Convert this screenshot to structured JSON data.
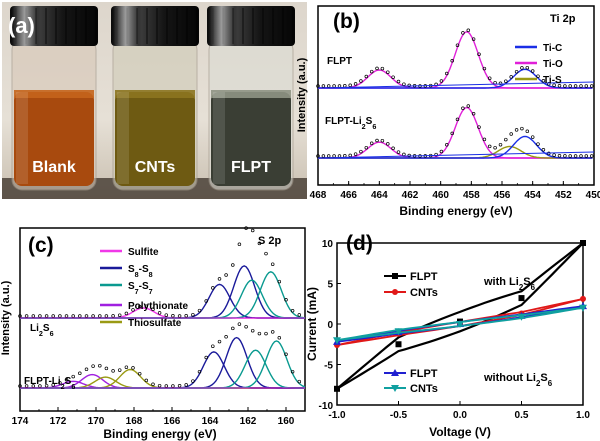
{
  "panel_a": {
    "label": "(a)",
    "vials": [
      {
        "label": "Blank",
        "liquid": "#a84a0e",
        "liquid_top": "#c4641c",
        "glass": "#d8c8b8"
      },
      {
        "label": "CNTs",
        "liquid": "#6e5a12",
        "liquid_top": "#8c7420",
        "glass": "#d0ccb8"
      },
      {
        "label": "FLPT",
        "liquid": "#3a3e34",
        "liquid_top": "#8f9484",
        "glass": "#dcdcd4"
      }
    ]
  },
  "chart_data": [
    {
      "panel": "(b)",
      "type": "line",
      "title": "Ti 2p",
      "xlabel": "Binding energy (eV)",
      "ylabel": "Intensity (a.u.)",
      "xlim": [
        468,
        450
      ],
      "x_ticks": [
        468,
        466,
        464,
        462,
        460,
        458,
        456,
        454,
        452,
        450
      ],
      "legend": [
        "Ti-C",
        "Ti-O",
        "Ti-S"
      ],
      "legend_colors": [
        "#1a2ee6",
        "#e020d8",
        "#9a9a14"
      ],
      "traces": [
        "FLPT",
        "FLPT-Li2S6"
      ],
      "series": [
        {
          "name": "FLPT",
          "peaks": [
            {
              "center": 464.0,
              "height": 0.25
            },
            {
              "center": 458.3,
              "height": 0.78
            },
            {
              "center": 454.5,
              "height": 0.26
            }
          ]
        },
        {
          "name": "FLPT-Li2S6",
          "peaks": [
            {
              "center": 464.0,
              "height": 0.22
            },
            {
              "center": 458.3,
              "height": 0.7
            },
            {
              "center": 455.5,
              "height": 0.16
            },
            {
              "center": 454.5,
              "height": 0.3
            }
          ]
        }
      ]
    },
    {
      "panel": "(c)",
      "type": "line",
      "title": "S 2p",
      "xlabel": "Binding energy (eV)",
      "ylabel": "Intensity (a.u.)",
      "xlim": [
        174,
        159
      ],
      "x_ticks": [
        174,
        172,
        170,
        168,
        166,
        164,
        162,
        160
      ],
      "legend": [
        "Sulfite",
        "S8-S8",
        "S7-S7",
        "Polythionate",
        "Thiosulfate"
      ],
      "legend_colors": [
        "#f038e8",
        "#1a1a9a",
        "#0a9a90",
        "#a020e0",
        "#9a9a14"
      ],
      "traces": [
        "Li2S6",
        "FLPT-Li2S6"
      ],
      "series": [
        {
          "name": "Li2S6",
          "peaks": [
            {
              "center": 167.5,
              "height": 0.12
            },
            {
              "center": 163.5,
              "height": 0.4
            },
            {
              "center": 162.2,
              "height": 0.62
            },
            {
              "center": 161.8,
              "height": 0.45
            },
            {
              "center": 160.8,
              "height": 0.55
            }
          ]
        },
        {
          "name": "FLPT-Li2S6",
          "peaks": [
            {
              "center": 171.2,
              "height": 0.08
            },
            {
              "center": 170.2,
              "height": 0.16
            },
            {
              "center": 169.5,
              "height": 0.13
            },
            {
              "center": 168.2,
              "height": 0.22
            },
            {
              "center": 163.8,
              "height": 0.43
            },
            {
              "center": 162.6,
              "height": 0.6
            },
            {
              "center": 161.6,
              "height": 0.45
            },
            {
              "center": 160.5,
              "height": 0.56
            }
          ]
        }
      ]
    },
    {
      "panel": "(d)",
      "type": "line",
      "xlabel": "Voltage (V)",
      "ylabel": "Current (mA)",
      "xlim": [
        -1.0,
        1.0
      ],
      "ylim": [
        -10,
        10
      ],
      "x_ticks": [
        -1.0,
        -0.5,
        0.0,
        0.5,
        1.0
      ],
      "y_ticks": [
        -10,
        -5,
        0,
        5,
        10
      ],
      "annotations": [
        "with Li2S6",
        "without Li2S6"
      ],
      "series": [
        {
          "name": "FLPT",
          "group": "with Li2S6",
          "color": "#000000",
          "marker": "square",
          "x": [
            -1.0,
            -0.5,
            0.0,
            0.5,
            1.0
          ],
          "y": [
            -8.0,
            -2.5,
            0.3,
            3.2,
            10.0
          ]
        },
        {
          "name": "CNTs",
          "group": "with Li2S6",
          "color": "#e01818",
          "marker": "circle",
          "x": [
            -1.0,
            -0.5,
            0.0,
            0.5,
            1.0
          ],
          "y": [
            -2.6,
            -1.2,
            0.0,
            1.3,
            3.1
          ]
        },
        {
          "name": "FLPT",
          "group": "without Li2S6",
          "color": "#2020d0",
          "marker": "triangle-up",
          "x": [
            -1.0,
            -0.5,
            0.0,
            0.5,
            1.0
          ],
          "y": [
            -2.2,
            -1.0,
            0.0,
            1.0,
            2.2
          ]
        },
        {
          "name": "CNTs",
          "group": "without Li2S6",
          "color": "#10a0a0",
          "marker": "triangle-down",
          "x": [
            -1.0,
            -0.5,
            0.0,
            0.5,
            1.0
          ],
          "y": [
            -2.0,
            -0.9,
            0.0,
            0.9,
            2.0
          ]
        }
      ]
    }
  ]
}
